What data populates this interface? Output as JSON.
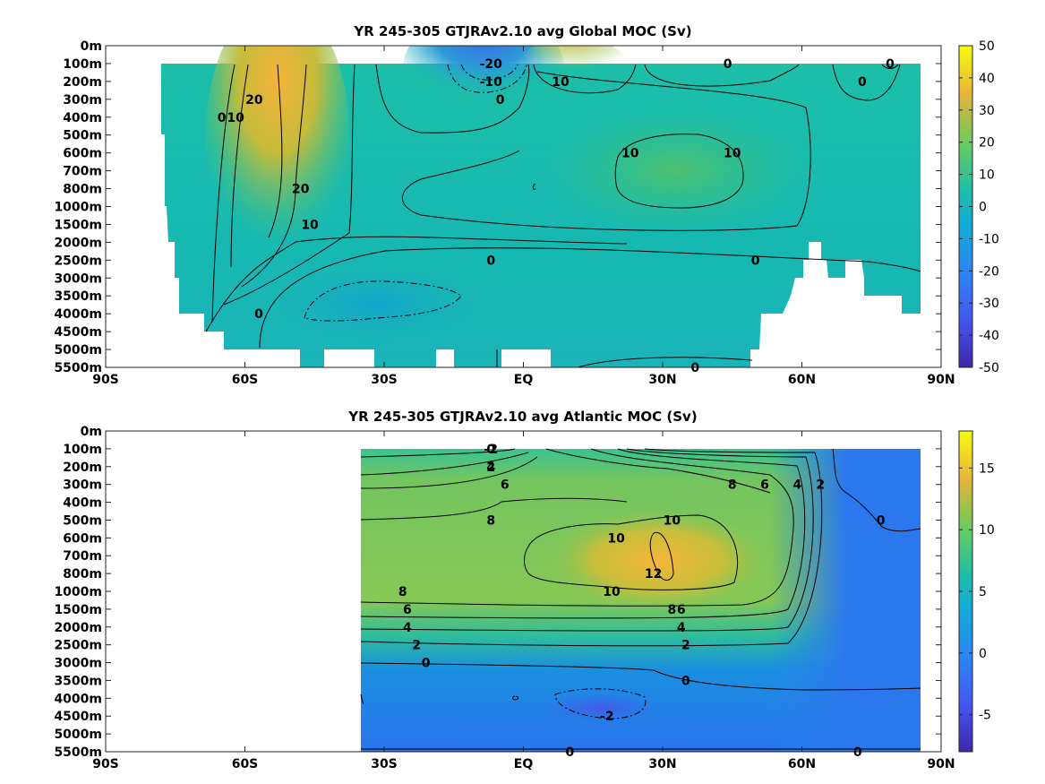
{
  "chart_data": [
    {
      "type": "heatmap",
      "title": "YR 245-305 GTJRAv2.10 avg  Global MOC (Sv)",
      "xlabel": "",
      "ylabel": "",
      "x_ticks": [
        "90S",
        "60S",
        "30S",
        "EQ",
        "30N",
        "60N",
        "90N"
      ],
      "x_range": [
        -90,
        90
      ],
      "y_ticks": [
        "0m",
        "100m",
        "200m",
        "300m",
        "400m",
        "500m",
        "600m",
        "700m",
        "800m",
        "1000m",
        "1500m",
        "2000m",
        "2500m",
        "3000m",
        "3500m",
        "4000m",
        "4500m",
        "5000m",
        "5500m"
      ],
      "colorbar": {
        "ticks": [
          "50",
          "40",
          "30",
          "20",
          "10",
          "0",
          "-10",
          "-20",
          "-30",
          "-40",
          "-50"
        ],
        "range": [
          -50,
          50
        ]
      },
      "contour_labels": [
        {
          "text": "0",
          "lat": -65,
          "level": 400
        },
        {
          "text": "10",
          "lat": -62,
          "level": 400
        },
        {
          "text": "20",
          "lat": -58,
          "level": 300
        },
        {
          "text": "20",
          "lat": -48,
          "level": 800
        },
        {
          "text": "10",
          "lat": -46,
          "level": 1500
        },
        {
          "text": "0",
          "lat": -57,
          "level": 4000
        },
        {
          "text": "-20",
          "lat": -7,
          "level": 100
        },
        {
          "text": "-10",
          "lat": -7,
          "level": 200
        },
        {
          "text": "0",
          "lat": -5,
          "level": 300
        },
        {
          "text": "10",
          "lat": 8,
          "level": 200
        },
        {
          "text": "0",
          "lat": 44,
          "level": 100
        },
        {
          "text": "0",
          "lat": 73,
          "level": 200
        },
        {
          "text": "0",
          "lat": 79,
          "level": 100
        },
        {
          "text": "10",
          "lat": 23,
          "level": 600
        },
        {
          "text": "10",
          "lat": 45,
          "level": 600
        },
        {
          "text": "0",
          "lat": -7,
          "level": 2500
        },
        {
          "text": "0",
          "lat": 50,
          "level": 2500
        },
        {
          "text": "0",
          "lat": 37,
          "level": 5500
        }
      ]
    },
    {
      "type": "heatmap",
      "title": "YR 245-305 GTJRAv2.10 avg  Atlantic MOC (Sv)",
      "xlabel": "",
      "ylabel": "",
      "x_ticks": [
        "90S",
        "60S",
        "30S",
        "EQ",
        "30N",
        "60N",
        "90N"
      ],
      "x_range": [
        -90,
        90
      ],
      "y_ticks": [
        "0m",
        "100m",
        "200m",
        "300m",
        "400m",
        "500m",
        "600m",
        "700m",
        "800m",
        "1000m",
        "1500m",
        "2000m",
        "2500m",
        "3000m",
        "3500m",
        "4000m",
        "4500m",
        "5000m",
        "5500m"
      ],
      "colorbar": {
        "ticks": [
          "15",
          "10",
          "5",
          "0",
          "-5"
        ],
        "range": [
          -8,
          18
        ]
      },
      "contour_labels": [
        {
          "text": "-2",
          "lat": -7,
          "level": 100
        },
        {
          "text": "0",
          "lat": -7,
          "level": 100
        },
        {
          "text": "2",
          "lat": -7,
          "level": 200
        },
        {
          "text": "4",
          "lat": -7,
          "level": 200
        },
        {
          "text": "6",
          "lat": -4,
          "level": 300
        },
        {
          "text": "8",
          "lat": -7,
          "level": 500
        },
        {
          "text": "10",
          "lat": 32,
          "level": 500
        },
        {
          "text": "10",
          "lat": 20,
          "level": 600
        },
        {
          "text": "12",
          "lat": 28,
          "level": 800
        },
        {
          "text": "10",
          "lat": 19,
          "level": 1000
        },
        {
          "text": "8",
          "lat": 45,
          "level": 300
        },
        {
          "text": "6",
          "lat": 52,
          "level": 300
        },
        {
          "text": "4",
          "lat": 59,
          "level": 300
        },
        {
          "text": "2",
          "lat": 64,
          "level": 300
        },
        {
          "text": "0",
          "lat": 77,
          "level": 500
        },
        {
          "text": "8",
          "lat": -26,
          "level": 1000
        },
        {
          "text": "6",
          "lat": -25,
          "level": 1500
        },
        {
          "text": "4",
          "lat": -25,
          "level": 2000
        },
        {
          "text": "2",
          "lat": -23,
          "level": 2500
        },
        {
          "text": "8",
          "lat": 32,
          "level": 1500
        },
        {
          "text": "6",
          "lat": 34,
          "level": 1500
        },
        {
          "text": "4",
          "lat": 34,
          "level": 2000
        },
        {
          "text": "2",
          "lat": 35,
          "level": 2500
        },
        {
          "text": "0",
          "lat": -21,
          "level": 3000
        },
        {
          "text": "0",
          "lat": 35,
          "level": 3500
        },
        {
          "text": "-2",
          "lat": 18,
          "level": 4500
        },
        {
          "text": "0",
          "lat": 10,
          "level": 5500
        },
        {
          "text": "0",
          "lat": 72,
          "level": 5500
        }
      ]
    }
  ]
}
